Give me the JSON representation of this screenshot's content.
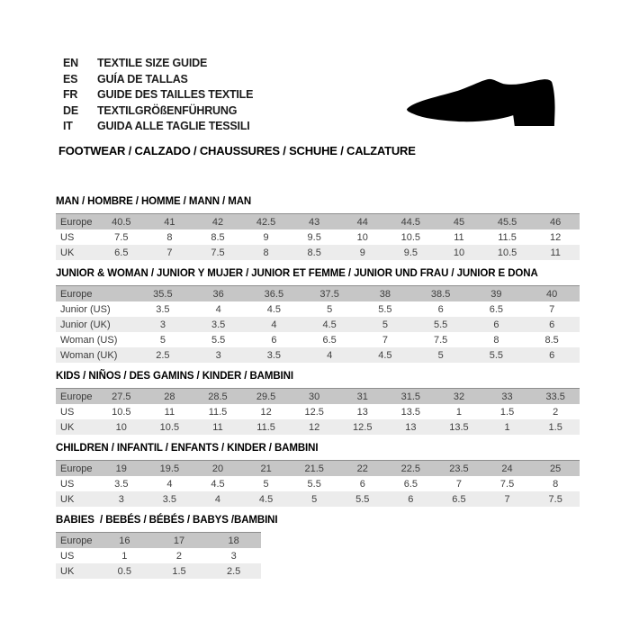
{
  "header": {
    "languages": [
      {
        "code": "EN",
        "label": "TEXTILE SIZE GUIDE"
      },
      {
        "code": "ES",
        "label": "GUÍA DE TALLAS"
      },
      {
        "code": "FR",
        "label": "GUIDE DES TAILLES TEXTILE"
      },
      {
        "code": "DE",
        "label": "TEXTILGRÖßENFÜHRUNG"
      },
      {
        "code": "IT",
        "label": "GUIDA ALLE TAGLIE TESSILI"
      }
    ],
    "category_line": "FOOTWEAR / CALZADO / CHAUSSURES / SCHUHE / CALZATURE",
    "shoe_icon": "dress-shoe-silhouette"
  },
  "tables": [
    {
      "title": "MAN / HOMBRE / HOMME / MANN / MAN",
      "compact": false,
      "rows": [
        {
          "label": "Europe",
          "header": true,
          "values": [
            "40.5",
            "41",
            "42",
            "42.5",
            "43",
            "44",
            "44.5",
            "45",
            "45.5",
            "46"
          ]
        },
        {
          "label": "US",
          "header": false,
          "values": [
            "7.5",
            "8",
            "8.5",
            "9",
            "9.5",
            "10",
            "10.5",
            "11",
            "11.5",
            "12"
          ]
        },
        {
          "label": "UK",
          "header": false,
          "values": [
            "6.5",
            "7",
            "7.5",
            "8",
            "8.5",
            "9",
            "9.5",
            "10",
            "10.5",
            "11"
          ]
        }
      ]
    },
    {
      "title": "JUNIOR & WOMAN / JUNIOR Y MUJER / JUNIOR ET FEMME / JUNIOR UND FRAU / JUNIOR E DONA",
      "compact": false,
      "rows": [
        {
          "label": "Europe",
          "header": true,
          "values": [
            "35.5",
            "36",
            "36.5",
            "37.5",
            "38",
            "38.5",
            "39",
            "40"
          ]
        },
        {
          "label": "Junior (US)",
          "header": false,
          "values": [
            "3.5",
            "4",
            "4.5",
            "5",
            "5.5",
            "6",
            "6.5",
            "7"
          ]
        },
        {
          "label": "Junior (UK)",
          "header": false,
          "values": [
            "3",
            "3.5",
            "4",
            "4.5",
            "5",
            "5.5",
            "6",
            "6"
          ]
        },
        {
          "label": "Woman (US)",
          "header": false,
          "values": [
            "5",
            "5.5",
            "6",
            "6.5",
            "7",
            "7.5",
            "8",
            "8.5"
          ]
        },
        {
          "label": "Woman (UK)",
          "header": false,
          "values": [
            "2.5",
            "3",
            "3.5",
            "4",
            "4.5",
            "5",
            "5.5",
            "6"
          ]
        }
      ]
    },
    {
      "title": "KIDS / NIÑOS / DES GAMINS / KINDER / BAMBINI",
      "compact": false,
      "rows": [
        {
          "label": "Europe",
          "header": true,
          "values": [
            "27.5",
            "28",
            "28.5",
            "29.5",
            "30",
            "31",
            "31.5",
            "32",
            "33",
            "33.5"
          ]
        },
        {
          "label": "US",
          "header": false,
          "values": [
            "10.5",
            "11",
            "11.5",
            "12",
            "12.5",
            "13",
            "13.5",
            "1",
            "1.5",
            "2"
          ]
        },
        {
          "label": "UK",
          "header": false,
          "values": [
            "10",
            "10.5",
            "11",
            "11.5",
            "12",
            "12.5",
            "13",
            "13.5",
            "1",
            "1.5"
          ]
        }
      ]
    },
    {
      "title": "CHILDREN / INFANTIL / ENFANTS / KINDER / BAMBINI",
      "compact": false,
      "rows": [
        {
          "label": "Europe",
          "header": true,
          "values": [
            "19",
            "19.5",
            "20",
            "21",
            "21.5",
            "22",
            "22.5",
            "23.5",
            "24",
            "25"
          ]
        },
        {
          "label": "US",
          "header": false,
          "values": [
            "3.5",
            "4",
            "4.5",
            "5",
            "5.5",
            "6",
            "6.5",
            "7",
            "7.5",
            "8"
          ]
        },
        {
          "label": "UK",
          "header": false,
          "values": [
            "3",
            "3.5",
            "4",
            "4.5",
            "5",
            "5.5",
            "6",
            "6.5",
            "7",
            "7.5"
          ]
        }
      ]
    },
    {
      "title": "BABIES  / BEBÉS / BÉBÉS / BABYS /BAMBINI",
      "compact": true,
      "rows": [
        {
          "label": "Europe",
          "header": true,
          "values": [
            "16",
            "17",
            "18"
          ]
        },
        {
          "label": "US",
          "header": false,
          "values": [
            "1",
            "2",
            "3"
          ]
        },
        {
          "label": "UK",
          "header": false,
          "values": [
            "0.5",
            "1.5",
            "2.5"
          ]
        }
      ]
    }
  ],
  "colors": {
    "header_row_bg": "#c6c6c6",
    "stripe_row_bg": "#ececec",
    "table_top_border": "#8e8e8e",
    "text": "#3f3f3f",
    "title_text": "#000000",
    "shoe_fill": "#000000"
  }
}
